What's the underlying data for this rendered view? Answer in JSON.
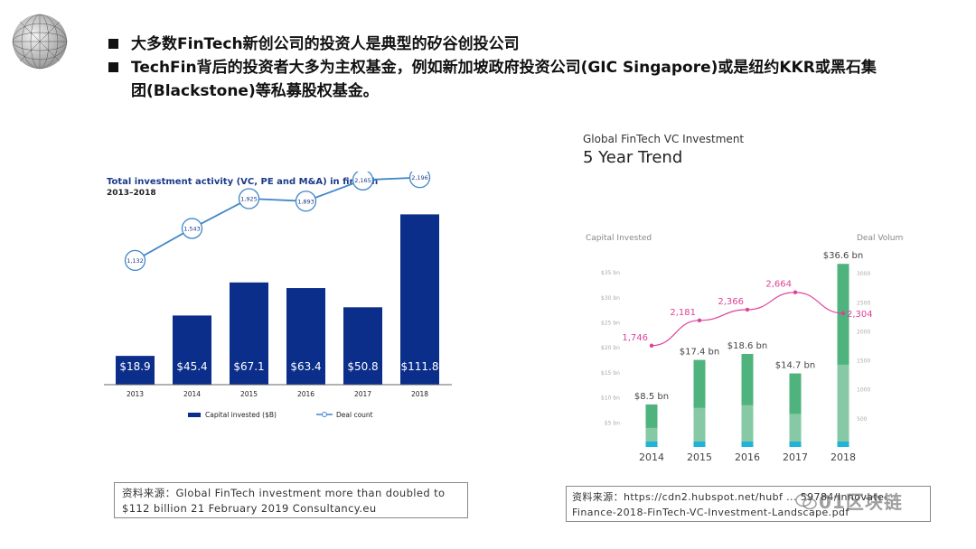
{
  "bullets": [
    "大多数FinTech新创公司的投资人是典型的矽谷创投公司",
    "TechFin背后的投资者大多为主权基金，例如新加坡政府投资公司(GIC  Singapore)或是纽约KKR或黑石集团(Blackstone)等私募股权基金。"
  ],
  "chart_data": [
    {
      "type": "bar",
      "title": "Total investment activity (VC, PE and M&A) in fintech",
      "subtitle": "2013–2018",
      "categories": [
        "2013",
        "2014",
        "2015",
        "2016",
        "2017",
        "2018"
      ],
      "series": [
        {
          "name": "Capital invested ($B)",
          "type": "bar",
          "values": [
            18.9,
            45.4,
            67.1,
            63.4,
            50.8,
            111.8
          ],
          "labels": [
            "$18.9",
            "$45.4",
            "$67.1",
            "$63.4",
            "$50.8",
            "$111.8"
          ]
        },
        {
          "name": "Deal count",
          "type": "line",
          "values": [
            1132,
            1543,
            1925,
            1893,
            2165,
            2196
          ],
          "labels": [
            "1,132",
            "1,543",
            "1,925",
            "1,893",
            "2,165",
            "2,196"
          ]
        }
      ],
      "ylim_bar": [
        0,
        115
      ],
      "ylim_line": [
        0,
        2250
      ],
      "colors": {
        "bar": "#0b2e8a",
        "line": "#3f87c8"
      }
    },
    {
      "type": "bar",
      "title": "Global FinTech VC Investment",
      "subtitle": "5 Year Trend",
      "ylabel": "Capital Invested",
      "y2label": "Deal Volume",
      "categories": [
        "2014",
        "2015",
        "2016",
        "2017",
        "2018"
      ],
      "series": [
        {
          "name": "Capital Invested",
          "type": "bar",
          "values": [
            8.5,
            17.4,
            18.6,
            14.7,
            36.6
          ],
          "labels": [
            "$8.5 bn",
            "$17.4 bn",
            "$18.6 bn",
            "$14.7 bn",
            "$36.6 bn"
          ]
        },
        {
          "name": "Deal Volume",
          "type": "line",
          "values": [
            1746,
            2181,
            2366,
            2664,
            2304
          ],
          "labels": [
            "1,746",
            "2,181",
            "2,366",
            "2,664",
            "2,304"
          ]
        }
      ],
      "left_ticks": [
        "$5 bn",
        "$10 bn",
        "$15 bn",
        "$20 bn",
        "$25 bn",
        "$30 bn",
        "$35 bn"
      ],
      "left_tick_values": [
        5,
        10,
        15,
        20,
        25,
        30,
        35
      ],
      "right_ticks": [
        "500",
        "1000",
        "1500",
        "2000",
        "2500",
        "3000"
      ],
      "right_tick_values": [
        500,
        1000,
        1500,
        2000,
        2500,
        3000
      ],
      "ylim": [
        0,
        37
      ],
      "y2lim": [
        0,
        3500
      ],
      "colors": {
        "bar_top": "#4fb37e",
        "bar_mid": "#86c9a4",
        "bar_base": "#1fb3d8",
        "line": "#e0409a"
      }
    }
  ],
  "chart1_legend": {
    "bar": "Capital invested ($B)",
    "line": "Deal count"
  },
  "sources": {
    "left": [
      "资料来源：Global FinTech investment more than doubled to",
      "$112 billion  21 February 2019 Consultancy.eu"
    ],
    "right": [
      "资料来源：https://cdn2.hubspot.net/hubf ... 59784/Innovate-",
      "Finance-2018-FinTech-VC-Investment-Landscape.pdf"
    ]
  },
  "watermark": "01区块链"
}
